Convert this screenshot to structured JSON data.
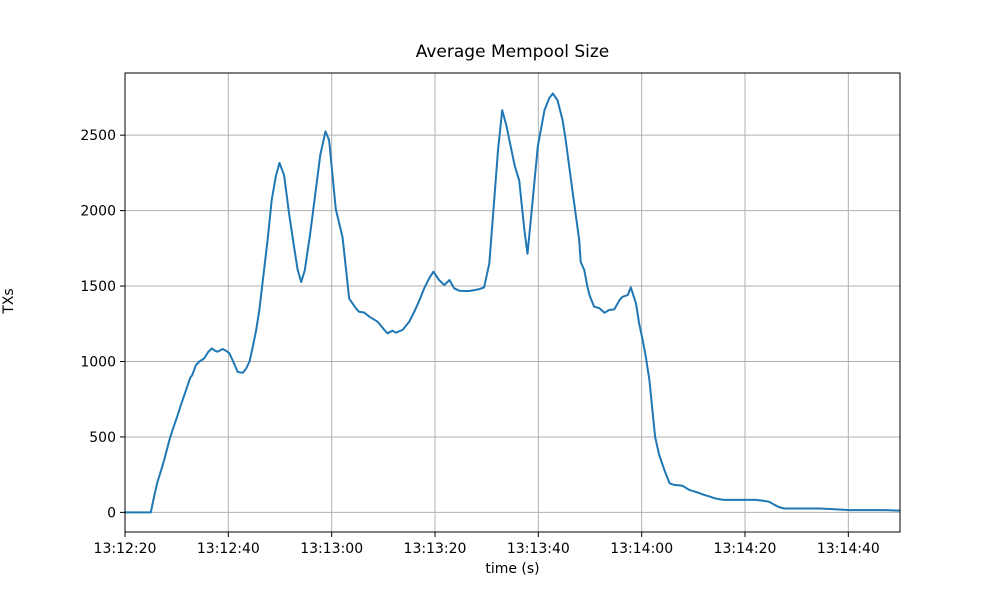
{
  "figure": {
    "background": "#ffffff"
  },
  "chart_data": {
    "type": "line",
    "title": "Average Mempool Size",
    "xlabel": "time (s)",
    "ylabel": "TXs",
    "line_color": "#1f77b4",
    "line_width": 2,
    "grid": true,
    "grid_color": "#b0b0b0",
    "axis_color": "#000000",
    "legend": "none",
    "x_tick_labels": [
      "13:12:20",
      "13:12:40",
      "13:13:00",
      "13:13:20",
      "13:13:40",
      "13:14:00",
      "13:14:20",
      "13:14:40"
    ],
    "x_tick_seconds": [
      0,
      20,
      40,
      60,
      80,
      100,
      120,
      140
    ],
    "y_ticks": [
      0,
      500,
      1000,
      1500,
      2000,
      2500
    ],
    "xlim_seconds": [
      0,
      150
    ],
    "ylim": [
      -130,
      2912
    ],
    "x_unit": "seconds after 13:12:20",
    "points": [
      [
        0,
        0
      ],
      [
        1,
        0
      ],
      [
        2,
        0
      ],
      [
        3,
        0
      ],
      [
        4,
        0
      ],
      [
        5,
        0
      ],
      [
        5.7,
        115
      ],
      [
        6.3,
        205
      ],
      [
        7,
        280
      ],
      [
        7.6,
        350
      ],
      [
        8.6,
        480
      ],
      [
        9.2,
        545
      ],
      [
        10.2,
        645
      ],
      [
        10.8,
        710
      ],
      [
        11.8,
        810
      ],
      [
        12.6,
        890
      ],
      [
        13,
        910
      ],
      [
        13.7,
        975
      ],
      [
        14.4,
        1000
      ],
      [
        15.3,
        1020
      ],
      [
        16.1,
        1063
      ],
      [
        16.8,
        1087
      ],
      [
        17.5,
        1070
      ],
      [
        17.9,
        1065
      ],
      [
        18.9,
        1083
      ],
      [
        19.6,
        1070
      ],
      [
        20.2,
        1054
      ],
      [
        20.8,
        1010
      ],
      [
        21.3,
        970
      ],
      [
        21.8,
        932
      ],
      [
        22.3,
        927
      ],
      [
        22.8,
        926
      ],
      [
        23.4,
        950
      ],
      [
        24.1,
        1000
      ],
      [
        24.6,
        1076
      ],
      [
        25.4,
        1209
      ],
      [
        26,
        1340
      ],
      [
        26.8,
        1575
      ],
      [
        27.6,
        1805
      ],
      [
        28.4,
        2070
      ],
      [
        29.2,
        2230
      ],
      [
        29.9,
        2316
      ],
      [
        30.8,
        2235
      ],
      [
        31.8,
        1970
      ],
      [
        32.8,
        1740
      ],
      [
        33.4,
        1610
      ],
      [
        34.1,
        1526
      ],
      [
        34.8,
        1606
      ],
      [
        35.8,
        1840
      ],
      [
        36.8,
        2100
      ],
      [
        37.8,
        2370
      ],
      [
        38.8,
        2525
      ],
      [
        39.5,
        2467
      ],
      [
        40.8,
        2010
      ],
      [
        42.1,
        1825
      ],
      [
        43.4,
        1416
      ],
      [
        44.7,
        1352
      ],
      [
        45.3,
        1330
      ],
      [
        46.3,
        1325
      ],
      [
        47.3,
        1297
      ],
      [
        48.9,
        1264
      ],
      [
        50.2,
        1209
      ],
      [
        50.8,
        1187
      ],
      [
        51.8,
        1204
      ],
      [
        52.4,
        1191
      ],
      [
        53.7,
        1209
      ],
      [
        55,
        1264
      ],
      [
        56,
        1330
      ],
      [
        57,
        1407
      ],
      [
        57.9,
        1485
      ],
      [
        58.9,
        1553
      ],
      [
        59.7,
        1595
      ],
      [
        60.8,
        1540
      ],
      [
        61.8,
        1507
      ],
      [
        62.8,
        1540
      ],
      [
        63.7,
        1485
      ],
      [
        64.7,
        1469
      ],
      [
        65.7,
        1467
      ],
      [
        66.6,
        1467
      ],
      [
        67.6,
        1473
      ],
      [
        68.6,
        1480
      ],
      [
        69.5,
        1491
      ],
      [
        70.5,
        1650
      ],
      [
        71.3,
        2000
      ],
      [
        72.2,
        2400
      ],
      [
        73,
        2666
      ],
      [
        73.8,
        2566
      ],
      [
        74.4,
        2467
      ],
      [
        75.4,
        2300
      ],
      [
        76.3,
        2200
      ],
      [
        77.3,
        1870
      ],
      [
        77.9,
        1714
      ],
      [
        78.9,
        2070
      ],
      [
        79.9,
        2425
      ],
      [
        81.2,
        2666
      ],
      [
        82.1,
        2745
      ],
      [
        82.8,
        2776
      ],
      [
        83.7,
        2732
      ],
      [
        84.7,
        2600
      ],
      [
        85.3,
        2467
      ],
      [
        86.6,
        2135
      ],
      [
        87.9,
        1805
      ],
      [
        88.2,
        1660
      ],
      [
        88.9,
        1606
      ],
      [
        89.5,
        1495
      ],
      [
        89.9,
        1440
      ],
      [
        90.8,
        1363
      ],
      [
        91.8,
        1354
      ],
      [
        92.8,
        1323
      ],
      [
        93.7,
        1341
      ],
      [
        94.7,
        1345
      ],
      [
        95.7,
        1407
      ],
      [
        96.3,
        1429
      ],
      [
        97.3,
        1440
      ],
      [
        97.9,
        1491
      ],
      [
        98.9,
        1385
      ],
      [
        99.5,
        1253
      ],
      [
        100.2,
        1142
      ],
      [
        100.8,
        1032
      ],
      [
        101.5,
        877
      ],
      [
        102.6,
        500
      ],
      [
        103.4,
        380
      ],
      [
        104.4,
        280
      ],
      [
        105.4,
        193
      ],
      [
        106.3,
        182
      ],
      [
        107.3,
        179
      ],
      [
        107.9,
        176
      ],
      [
        109.2,
        149
      ],
      [
        110.2,
        139
      ],
      [
        111.2,
        127
      ],
      [
        112.1,
        116
      ],
      [
        113.1,
        106
      ],
      [
        114.1,
        94
      ],
      [
        115,
        87
      ],
      [
        116,
        83
      ],
      [
        117.9,
        83
      ],
      [
        120.2,
        83
      ],
      [
        122.1,
        83
      ],
      [
        123.7,
        76
      ],
      [
        124.7,
        70
      ],
      [
        125.7,
        50
      ],
      [
        126.6,
        35
      ],
      [
        127.6,
        26
      ],
      [
        130.5,
        26
      ],
      [
        134.4,
        26
      ],
      [
        137,
        22
      ],
      [
        140.2,
        15
      ],
      [
        144,
        15
      ],
      [
        147,
        15
      ],
      [
        149.9,
        12
      ]
    ]
  }
}
